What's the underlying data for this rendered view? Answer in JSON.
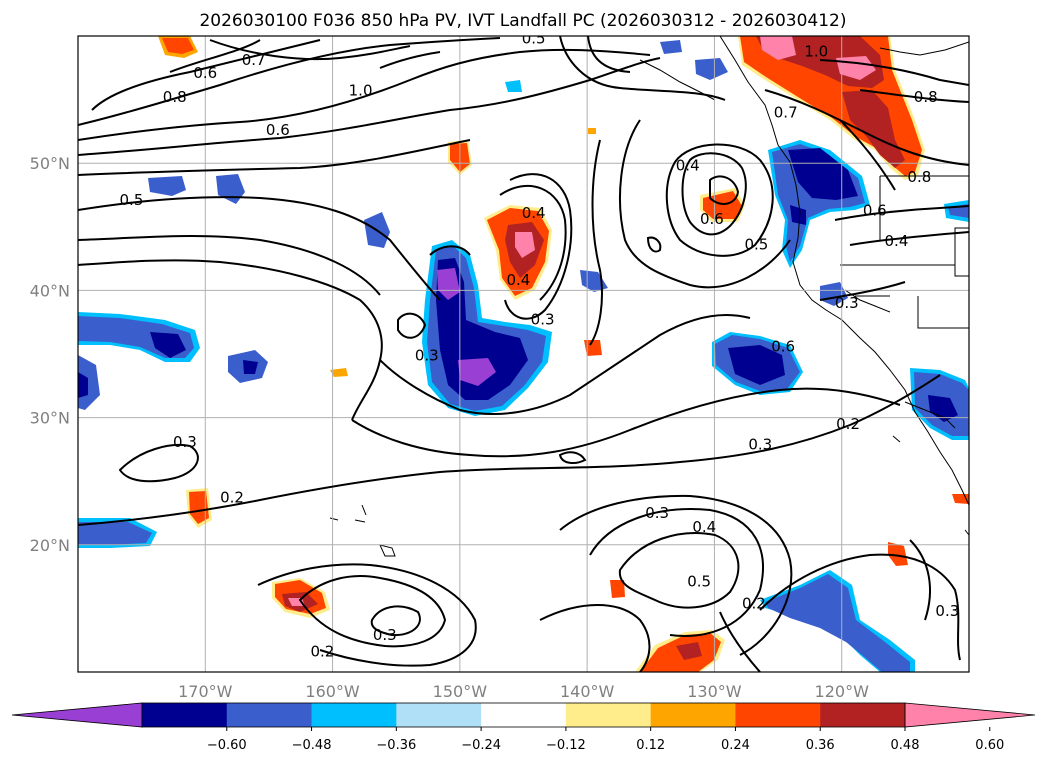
{
  "chart_data": {
    "type": "contour-map",
    "title": "2026030100 F036 850 hPa PV, IVT Landfall PC (2026030312 - 2026030412)",
    "map": {
      "lon_range": [
        -180,
        -110
      ],
      "lat_range": [
        10,
        60
      ],
      "lon_ticks": [
        {
          "value": -170,
          "label": "170°W"
        },
        {
          "value": -160,
          "label": "160°W"
        },
        {
          "value": -150,
          "label": "150°W"
        },
        {
          "value": -140,
          "label": "140°W"
        },
        {
          "value": -130,
          "label": "130°W"
        },
        {
          "value": -120,
          "label": "120°W"
        }
      ],
      "lat_ticks": [
        {
          "value": 20,
          "label": "20°N"
        },
        {
          "value": 30,
          "label": "30°N"
        },
        {
          "value": 40,
          "label": "40°N"
        },
        {
          "value": 50,
          "label": "50°N"
        }
      ],
      "grid": true
    },
    "colorbar": {
      "extend": "both",
      "colors": [
        "#9a3fd4",
        "#000090",
        "#3a5fcd",
        "#00bfff",
        "#b0e0f8",
        "#ffffff",
        "#ffec8b",
        "#ffa500",
        "#ff4500",
        "#b22222",
        "#ff82ab"
      ],
      "ticks": [
        "−0.60",
        "−0.48",
        "−0.36",
        "−0.24",
        "−0.12",
        "0.12",
        "0.24",
        "0.36",
        "0.48",
        "0.60"
      ]
    },
    "contour_labels": [
      {
        "text": "0.5",
        "lon": -144.2,
        "lat": 59.8
      },
      {
        "text": "0.6",
        "lon": -170.0,
        "lat": 57.1
      },
      {
        "text": "0.8",
        "lon": -172.4,
        "lat": 55.2
      },
      {
        "text": "0.7",
        "lon": -166.2,
        "lat": 58.1
      },
      {
        "text": "1.0",
        "lon": -157.8,
        "lat": 55.7
      },
      {
        "text": "0.6",
        "lon": -164.3,
        "lat": 52.6
      },
      {
        "text": "0.5",
        "lon": -175.8,
        "lat": 47.1
      },
      {
        "text": "0.4",
        "lon": -144.2,
        "lat": 46.1
      },
      {
        "text": "0.4",
        "lon": -145.4,
        "lat": 40.8
      },
      {
        "text": "0.3",
        "lon": -143.5,
        "lat": 37.7
      },
      {
        "text": "0.3",
        "lon": -152.6,
        "lat": 34.9
      },
      {
        "text": "0.4",
        "lon": -132.1,
        "lat": 49.8
      },
      {
        "text": "0.6",
        "lon": -130.2,
        "lat": 45.6
      },
      {
        "text": "0.5",
        "lon": -126.7,
        "lat": 43.6
      },
      {
        "text": "0.6",
        "lon": -124.6,
        "lat": 35.6
      },
      {
        "text": "1.0",
        "lon": -122.0,
        "lat": 58.8
      },
      {
        "text": "0.8",
        "lon": -113.4,
        "lat": 55.2
      },
      {
        "text": "0.7",
        "lon": -124.4,
        "lat": 54.0
      },
      {
        "text": "0.6",
        "lon": -117.4,
        "lat": 46.3
      },
      {
        "text": "0.4",
        "lon": -115.7,
        "lat": 43.9
      },
      {
        "text": "0.3",
        "lon": -119.6,
        "lat": 39.0
      },
      {
        "text": "0.8",
        "lon": -113.9,
        "lat": 48.9
      },
      {
        "text": "0.3",
        "lon": -171.6,
        "lat": 28.1
      },
      {
        "text": "0.2",
        "lon": -167.9,
        "lat": 23.7
      },
      {
        "text": "0.3",
        "lon": -126.4,
        "lat": 27.9
      },
      {
        "text": "0.2",
        "lon": -119.5,
        "lat": 29.5
      },
      {
        "text": "0.3",
        "lon": -134.5,
        "lat": 22.5
      },
      {
        "text": "0.4",
        "lon": -130.8,
        "lat": 21.4
      },
      {
        "text": "0.5",
        "lon": -131.2,
        "lat": 17.1
      },
      {
        "text": "0.2",
        "lon": -126.9,
        "lat": 15.4
      },
      {
        "text": "0.3",
        "lon": -111.7,
        "lat": 14.8
      },
      {
        "text": "0.3",
        "lon": -155.9,
        "lat": 12.9
      },
      {
        "text": "0.2",
        "lon": -160.8,
        "lat": 11.6
      }
    ]
  }
}
